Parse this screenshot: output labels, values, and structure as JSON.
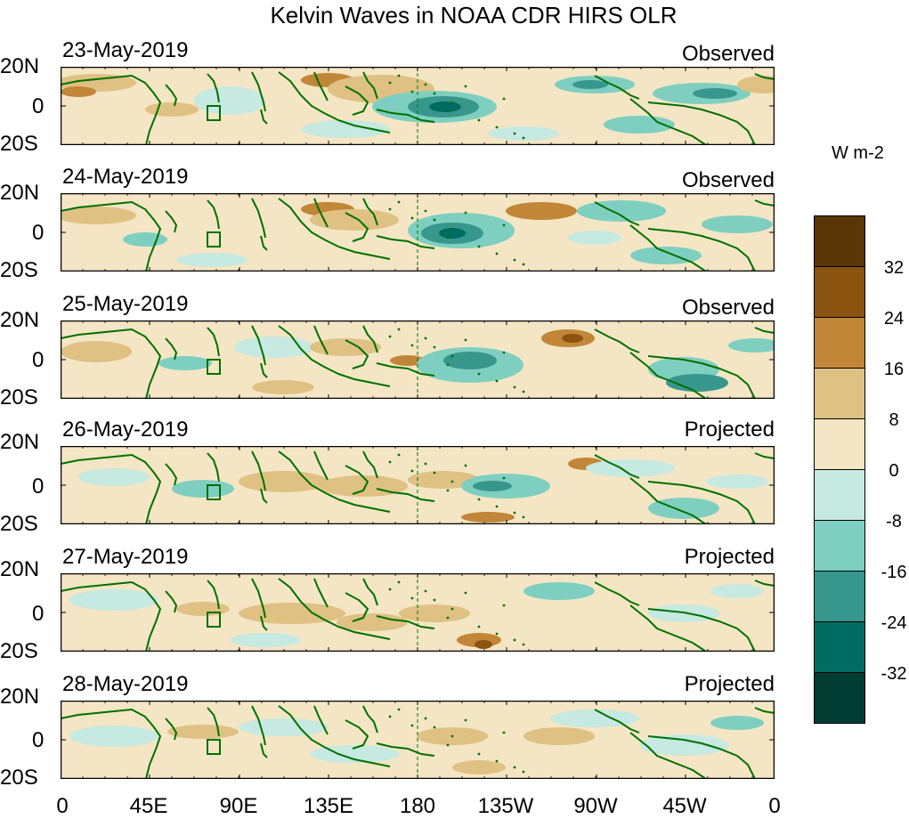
{
  "title": "Kelvin Waves in NOAA CDR HIRS OLR",
  "panels": [
    {
      "date": "23-May-2019",
      "status": "Observed"
    },
    {
      "date": "24-May-2019",
      "status": "Observed"
    },
    {
      "date": "25-May-2019",
      "status": "Observed"
    },
    {
      "date": "26-May-2019",
      "status": "Projected"
    },
    {
      "date": "27-May-2019",
      "status": "Projected"
    },
    {
      "date": "28-May-2019",
      "status": "Projected"
    }
  ],
  "lat_labels": [
    "20N",
    "0",
    "20S"
  ],
  "lon_labels": [
    "0",
    "45E",
    "90E",
    "135E",
    "180",
    "135W",
    "90W",
    "45W",
    "0"
  ],
  "colorbar": {
    "units": "W m-2",
    "ticks": [
      "32",
      "24",
      "16",
      "8",
      "0",
      "-8",
      "-16",
      "-24",
      "-32"
    ],
    "colors": [
      "#5a3505",
      "#8a5410",
      "#c18637",
      "#dfc184",
      "#f4e6c4",
      "#c6e9e1",
      "#7fcfc1",
      "#37978d",
      "#006b60",
      "#013c32"
    ]
  },
  "colors": {
    "coastline": "#007000",
    "frame": "#000000",
    "dateline": "#007000"
  }
}
